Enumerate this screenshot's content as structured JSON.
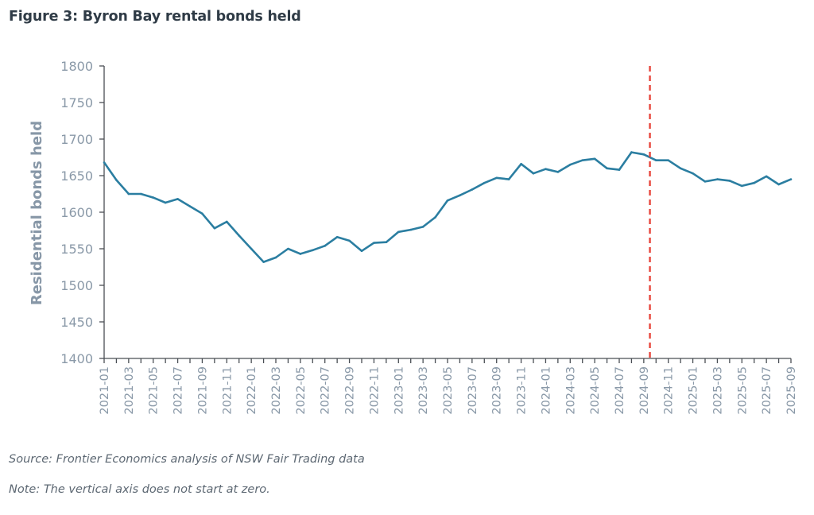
{
  "figure_title": "Figure 3: Byron Bay rental bonds held",
  "source_note": "Source: Frontier Economics analysis of NSW Fair Trading data",
  "axis_note": "Note: The vertical axis does not start at zero.",
  "colors": {
    "line": "#2b7ea1",
    "marker_line": "#e8453c",
    "axis": "#4a4f55",
    "tick_text": "#8a99a8"
  },
  "chart_data": {
    "type": "line",
    "title": "Figure 3: Byron Bay rental bonds held",
    "xlabel": "",
    "ylabel": "Residential bonds held",
    "ylim": [
      1400,
      1800
    ],
    "yticks": [
      "1400",
      "1450",
      "1500",
      "1550",
      "1600",
      "1650",
      "1700",
      "1750",
      "1800"
    ],
    "grid": false,
    "legend": "none",
    "x": [
      "2021-01",
      "2021-02",
      "2021-03",
      "2021-04",
      "2021-05",
      "2021-06",
      "2021-07",
      "2021-08",
      "2021-09",
      "2021-10",
      "2021-11",
      "2021-12",
      "2022-01",
      "2022-02",
      "2022-03",
      "2022-04",
      "2022-05",
      "2022-06",
      "2022-07",
      "2022-08",
      "2022-09",
      "2022-10",
      "2022-11",
      "2022-12",
      "2023-01",
      "2023-02",
      "2023-03",
      "2023-04",
      "2023-05",
      "2023-06",
      "2023-07",
      "2023-08",
      "2023-09",
      "2023-10",
      "2023-11",
      "2023-12",
      "2024-01",
      "2024-02",
      "2024-03",
      "2024-04",
      "2024-05",
      "2024-06",
      "2024-07",
      "2024-08",
      "2024-09",
      "2024-10",
      "2024-11",
      "2024-12",
      "2025-01",
      "2025-02",
      "2025-03",
      "2025-04",
      "2025-05",
      "2025-06",
      "2025-07",
      "2025-08",
      "2025-09"
    ],
    "xtick_labels": [
      "2021-01",
      "2021-03",
      "2021-05",
      "2021-07",
      "2021-09",
      "2021-11",
      "2022-01",
      "2022-03",
      "2022-05",
      "2022-07",
      "2022-09",
      "2022-11",
      "2023-01",
      "2023-03",
      "2023-05",
      "2023-07",
      "2023-09",
      "2023-11",
      "2024-01",
      "2024-03",
      "2024-05",
      "2024-07",
      "2024-09",
      "2024-11",
      "2025-01",
      "2025-03",
      "2025-05",
      "2025-07",
      "2025-09"
    ],
    "series": [
      {
        "name": "Residential bonds held",
        "values": [
          1668,
          1644,
          1625,
          1625,
          1620,
          1613,
          1618,
          1608,
          1598,
          1578,
          1587,
          1568,
          1550,
          1532,
          1538,
          1550,
          1543,
          1548,
          1554,
          1566,
          1561,
          1547,
          1558,
          1559,
          1573,
          1576,
          1580,
          1593,
          1616,
          1623,
          1631,
          1640,
          1647,
          1645,
          1666,
          1653,
          1659,
          1655,
          1665,
          1671,
          1673,
          1660,
          1658,
          1682,
          1679,
          1671,
          1671,
          1660,
          1653,
          1642,
          1645,
          1643,
          1636,
          1640,
          1649,
          1638,
          1645
        ]
      }
    ],
    "annotations": [
      {
        "type": "vertical-dashed-line",
        "x_position": 44.5,
        "between": [
          "2024-09",
          "2024-10"
        ]
      }
    ]
  }
}
